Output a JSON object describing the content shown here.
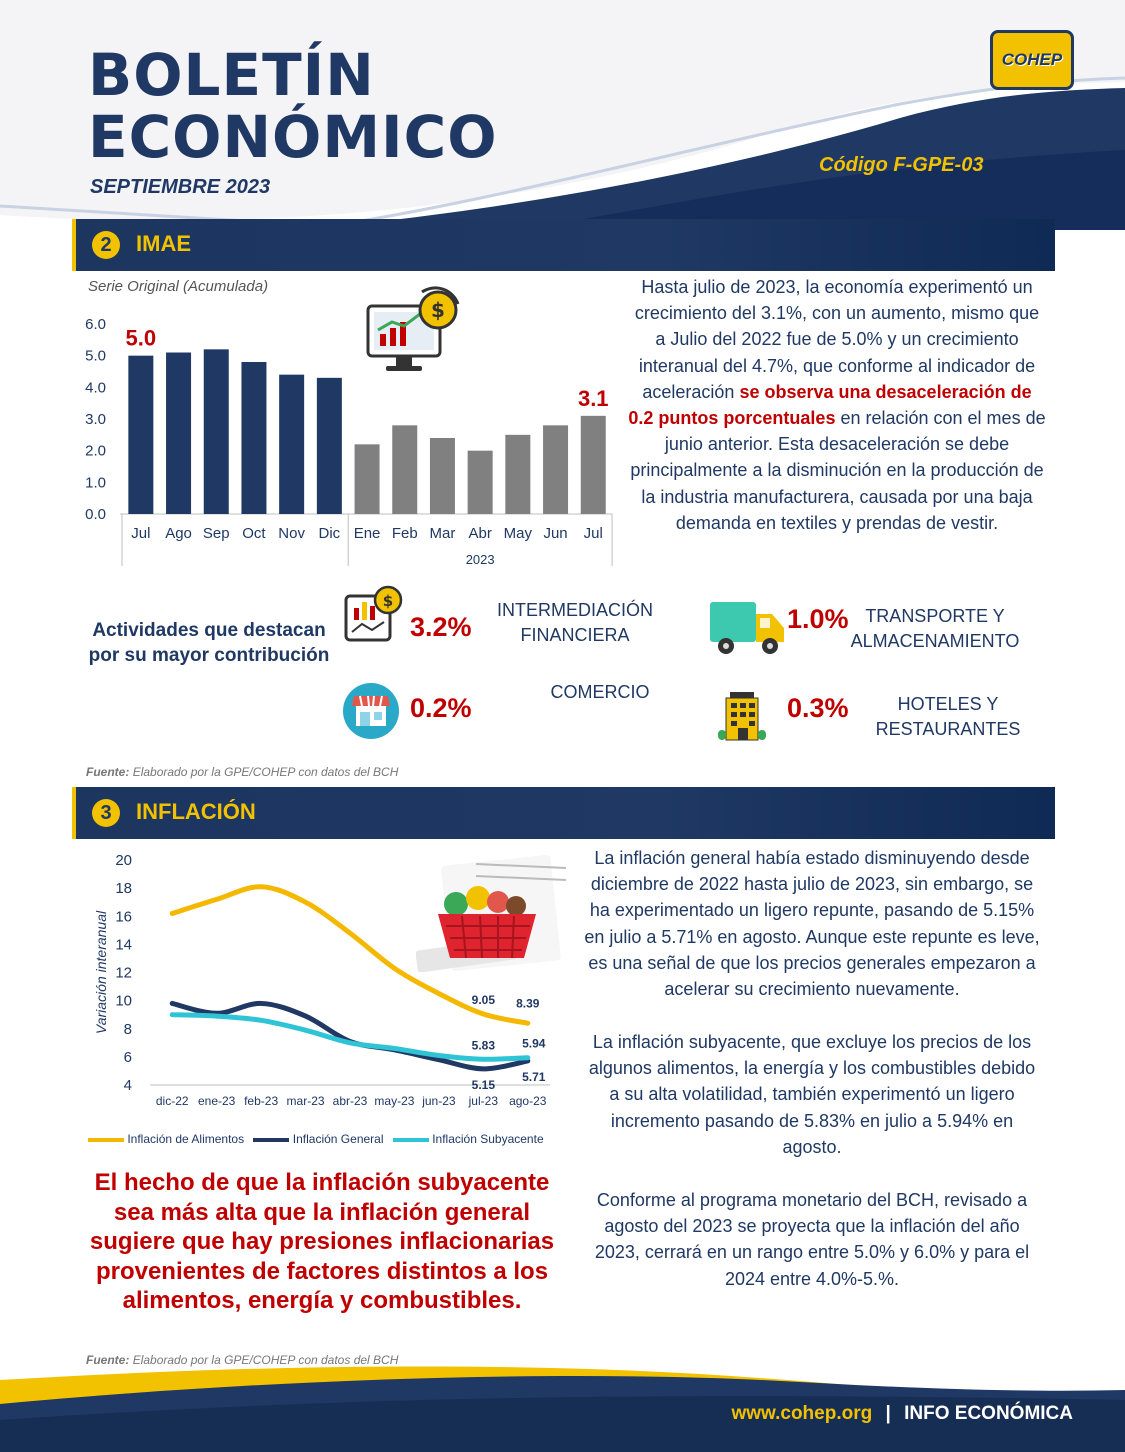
{
  "header": {
    "title_line1": "BOLETÍN",
    "title_line2": "ECONÓMICO",
    "month": "SEPTIEMBRE 2023",
    "code": "Código F-GPE-03",
    "logo_text": "COHEP"
  },
  "colors": {
    "navy": "#1f3864",
    "gold": "#f2c200",
    "red": "#c00000",
    "gray": "#808080"
  },
  "imae": {
    "number": "2",
    "title": "IMAE",
    "chart_subtitle": "Serie Original (Acumulada)",
    "paragraph_part1": "Hasta julio de 2023, la economía experimentó un crecimiento del 3.1%, con un aumento, mismo que a Julio del 2022 fue de 5.0% y un crecimiento interanual del 4.7%, que conforme al indicador de aceleración",
    "paragraph_highlight": "se observa una desaceleración de 0.2 puntos porcentuales",
    "paragraph_part2": "en relación con el mes de junio anterior. Esta desaceleración se debe principalmente a la disminución en la producción de la industria manufacturera, causada por una baja demanda en textiles y prendas de vestir.",
    "activities_heading": "Actividades que destacan por su mayor contribución",
    "activities": [
      {
        "pct": "3.2%",
        "name_line1": "INTERMEDIACIÓN",
        "name_line2": "FINANCIERA",
        "icon": "finance-icon"
      },
      {
        "pct": "1.0%",
        "name_line1": "TRANSPORTE Y",
        "name_line2": "ALMACENAMIENTO",
        "icon": "truck-icon"
      },
      {
        "pct": "0.2%",
        "name_line1": "COMERCIO",
        "name_line2": "",
        "icon": "store-icon"
      },
      {
        "pct": "0.3%",
        "name_line1": "HOTELES Y",
        "name_line2": "RESTAURANTES",
        "icon": "hotel-icon"
      }
    ],
    "source_label": "Fuente:",
    "source_text": "Elaborado por la GPE/COHEP con datos del BCH"
  },
  "inflacion": {
    "number": "3",
    "title": "INFLACIÓN",
    "ylabel": "Variación interanual",
    "paragraph1": "La inflación general había estado disminuyendo desde diciembre de 2022 hasta julio de 2023, sin embargo, se ha experimentado un ligero repunte, pasando de 5.15% en julio a 5.71% en agosto. Aunque este repunte es leve, es una señal de que los precios generales empezaron a acelerar su crecimiento nuevamente.",
    "paragraph2": "La inflación subyacente, que excluye los precios de los algunos alimentos, la energía y los combustibles debido a su alta volatilidad, también experimentó un ligero incremento pasando de 5.83% en julio a 5.94% en agosto.",
    "paragraph3": "Conforme al programa monetario del BCH, revisado a agosto del 2023 se proyecta que la inflación del año 2023, cerrará en un rango entre 5.0% y 6.0% y para el 2024 entre 4.0%-5.%.",
    "callout": "El hecho de que la inflación subyacente sea más alta que la inflación general sugiere que hay presiones inflacionarias provenientes de factores distintos a los alimentos, energía y combustibles.",
    "source_label": "Fuente:",
    "source_text": "Elaborado por la GPE/COHEP con datos del BCH"
  },
  "footer": {
    "url": "www.cohep.org",
    "separator": "|",
    "label": "INFO ECONÓMICA"
  },
  "chart_data": [
    {
      "type": "bar",
      "title": "Serie Original (Acumulada)",
      "categories": [
        "Jul",
        "Ago",
        "Sep",
        "Oct",
        "Nov",
        "Dic",
        "Ene",
        "Feb",
        "Mar",
        "Abr",
        "May",
        "Jun",
        "Jul"
      ],
      "group_label": "2023",
      "values": [
        5.0,
        5.1,
        5.2,
        4.8,
        4.4,
        4.3,
        2.2,
        2.8,
        2.4,
        2.0,
        2.5,
        2.8,
        3.1
      ],
      "data_labels": {
        "first": "5.0",
        "last": "3.1"
      },
      "yticks": [
        "0.0",
        "1.0",
        "2.0",
        "3.0",
        "4.0",
        "5.0",
        "6.0"
      ],
      "ylim": [
        0,
        6
      ]
    },
    {
      "type": "line",
      "categories": [
        "dic-22",
        "ene-23",
        "feb-23",
        "mar-23",
        "abr-23",
        "may-23",
        "jun-23",
        "jul-23",
        "ago-23"
      ],
      "ylabel": "Variación interanual",
      "yticks": [
        "4",
        "6",
        "8",
        "10",
        "12",
        "14",
        "16",
        "18",
        "20"
      ],
      "ylim": [
        4,
        20
      ],
      "series": [
        {
          "name": "Inflación de Alimentos",
          "values": [
            16.2,
            17.2,
            18.1,
            17.0,
            14.8,
            12.3,
            10.5,
            9.05,
            8.39
          ]
        },
        {
          "name": "Inflación General",
          "values": [
            9.8,
            9.1,
            9.8,
            8.9,
            7.1,
            6.5,
            5.8,
            5.15,
            5.71
          ]
        },
        {
          "name": "Inflación Subyacente",
          "values": [
            9.0,
            8.9,
            8.6,
            7.9,
            7.0,
            6.6,
            6.1,
            5.83,
            5.94
          ]
        }
      ],
      "data_labels": [
        "9.05",
        "8.39",
        "5.83",
        "5.94",
        "5.15",
        "5.71"
      ]
    }
  ]
}
